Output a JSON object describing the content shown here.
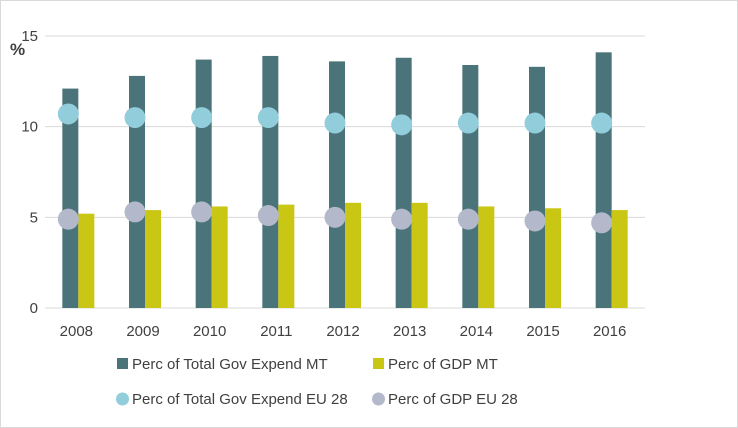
{
  "chart_data": {
    "type": "bar",
    "title": "",
    "ylabel": "%",
    "xlabel": "",
    "ylim": [
      0,
      15
    ],
    "yticks": [
      0,
      5,
      10,
      15
    ],
    "grid": true,
    "legend_position": "bottom",
    "categories": [
      "2008",
      "2009",
      "2010",
      "2011",
      "2012",
      "2013",
      "2014",
      "2015",
      "2016"
    ],
    "series": [
      {
        "name": "Perc of Total Gov Expend MT",
        "kind": "bar",
        "color": "#4a7479",
        "values": [
          12.1,
          12.8,
          13.7,
          13.9,
          13.6,
          13.8,
          13.4,
          13.3,
          14.1
        ]
      },
      {
        "name": "Perc of GDP MT",
        "kind": "bar",
        "color": "#c9c614",
        "values": [
          5.2,
          5.4,
          5.6,
          5.7,
          5.8,
          5.8,
          5.6,
          5.5,
          5.4
        ]
      },
      {
        "name": "Perc of Total Gov Expend EU 28",
        "kind": "marker",
        "color": "#92cddc",
        "values": [
          10.7,
          10.5,
          10.5,
          10.5,
          10.2,
          10.1,
          10.2,
          10.2,
          10.2
        ]
      },
      {
        "name": "Perc of GDP EU 28",
        "kind": "marker",
        "color": "#b3b9ca",
        "values": [
          4.9,
          5.3,
          5.3,
          5.1,
          5.0,
          4.9,
          4.9,
          4.8,
          4.7
        ]
      }
    ]
  }
}
